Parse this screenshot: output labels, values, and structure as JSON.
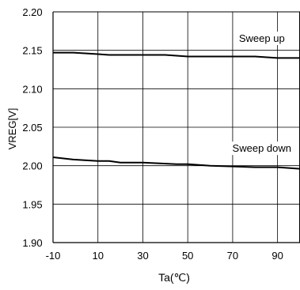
{
  "chart_data": {
    "type": "line",
    "xlabel": "Ta(℃)",
    "ylabel": "VREG[V]",
    "xlim": [
      -10,
      100
    ],
    "ylim": [
      1.9,
      2.2
    ],
    "x_ticks": [
      -10,
      10,
      30,
      50,
      70,
      90
    ],
    "x_tick_labels": [
      "-10",
      "10",
      "30",
      "50",
      "70",
      "90"
    ],
    "y_ticks": [
      1.9,
      1.95,
      2.0,
      2.05,
      2.1,
      2.15,
      2.2
    ],
    "y_tick_labels": [
      "1.90",
      "1.95",
      "2.00",
      "2.05",
      "2.10",
      "2.15",
      "2.20"
    ],
    "grid": true,
    "line_color": "#000000",
    "series": [
      {
        "name": "Sweep up",
        "x": [
          -10,
          -1,
          5,
          10,
          15,
          25,
          40,
          50,
          60,
          80,
          90,
          100
        ],
        "y": [
          2.147,
          2.147,
          2.146,
          2.145,
          2.144,
          2.144,
          2.144,
          2.142,
          2.142,
          2.142,
          2.14,
          2.14
        ]
      },
      {
        "name": "Sweep down",
        "x": [
          -10,
          -1,
          10,
          15,
          20,
          30,
          45,
          50,
          60,
          70,
          80,
          90,
          100
        ],
        "y": [
          2.011,
          2.008,
          2.006,
          2.006,
          2.004,
          2.004,
          2.002,
          2.002,
          2.0,
          1.999,
          1.998,
          1.998,
          1.996
        ]
      }
    ],
    "annotations": [
      {
        "text": "Sweep up",
        "x": 83,
        "y": 2.162
      },
      {
        "text": "Sweep down",
        "x": 83,
        "y": 2.019
      }
    ]
  }
}
